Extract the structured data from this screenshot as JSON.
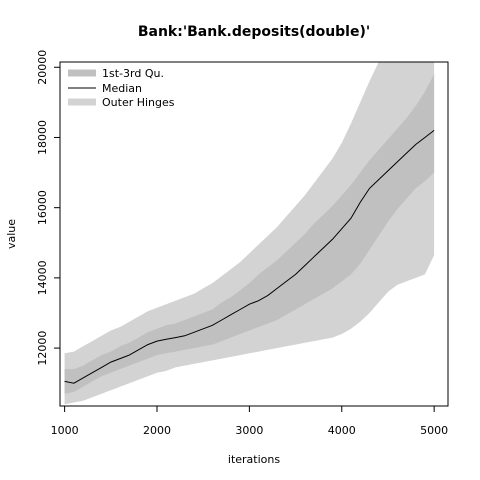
{
  "chart_data": {
    "type": "area",
    "title": "Bank:'Bank.deposits(double)'",
    "xlabel": "iterations",
    "ylabel": "value",
    "xlim": [
      950,
      5150
    ],
    "ylim": [
      10350,
      20150
    ],
    "x_ticks": [
      1000,
      2000,
      3000,
      4000,
      5000
    ],
    "y_ticks": [
      12000,
      14000,
      16000,
      18000,
      20000
    ],
    "legend_position": "top-left",
    "legend": [
      {
        "label": "1st-3rd Qu.",
        "kind": "band",
        "color": "#c0c0c0"
      },
      {
        "label": "Median",
        "kind": "line",
        "color": "#000000"
      },
      {
        "label": "Outer Hinges",
        "kind": "band",
        "color": "#d3d3d3"
      }
    ],
    "colors": {
      "outer_band": "#d3d3d3",
      "iqr_band": "#c0c0c0",
      "median_line": "#000000"
    },
    "x": [
      1000,
      1100,
      1200,
      1300,
      1400,
      1500,
      1600,
      1700,
      1800,
      1900,
      2000,
      2100,
      2200,
      2300,
      2400,
      2500,
      2600,
      2700,
      2800,
      2900,
      3000,
      3100,
      3200,
      3300,
      3400,
      3500,
      3600,
      3700,
      3800,
      3900,
      4000,
      4100,
      4200,
      4300,
      4400,
      4500,
      4600,
      4700,
      4800,
      4900,
      5000
    ],
    "series": [
      {
        "name": "Outer Hinges lower",
        "values": [
          10400,
          10450,
          10500,
          10600,
          10700,
          10800,
          10900,
          11000,
          11100,
          11200,
          11300,
          11350,
          11450,
          11500,
          11550,
          11600,
          11650,
          11700,
          11750,
          11800,
          11850,
          11900,
          11950,
          12000,
          12050,
          12100,
          12150,
          12200,
          12250,
          12300,
          12400,
          12550,
          12750,
          13000,
          13300,
          13600,
          13800,
          13900,
          14000,
          14100,
          14650
        ]
      },
      {
        "name": "1st-3rd Qu. lower",
        "values": [
          10700,
          10750,
          10900,
          11050,
          11200,
          11300,
          11400,
          11500,
          11600,
          11700,
          11800,
          11850,
          11900,
          11950,
          12000,
          12050,
          12100,
          12200,
          12300,
          12400,
          12500,
          12600,
          12700,
          12800,
          12950,
          13100,
          13250,
          13400,
          13550,
          13700,
          13900,
          14100,
          14400,
          14800,
          15200,
          15600,
          15950,
          16250,
          16550,
          16750,
          17000
        ]
      },
      {
        "name": "Median",
        "values": [
          11050,
          11000,
          11150,
          11300,
          11450,
          11600,
          11700,
          11800,
          11950,
          12100,
          12200,
          12250,
          12300,
          12350,
          12450,
          12550,
          12650,
          12800,
          12950,
          13100,
          13250,
          13350,
          13500,
          13700,
          13900,
          14100,
          14350,
          14600,
          14850,
          15100,
          15400,
          15700,
          16150,
          16550,
          16800,
          17050,
          17300,
          17550,
          17800,
          18000,
          18200
        ]
      },
      {
        "name": "1st-3rd Qu. upper",
        "values": [
          11400,
          11400,
          11500,
          11650,
          11800,
          11900,
          12050,
          12150,
          12300,
          12450,
          12550,
          12650,
          12700,
          12800,
          12900,
          13000,
          13100,
          13300,
          13450,
          13650,
          13850,
          14100,
          14300,
          14500,
          14750,
          15000,
          15250,
          15550,
          15800,
          16050,
          16350,
          16650,
          17000,
          17350,
          17650,
          17950,
          18250,
          18550,
          18900,
          19300,
          19800
        ]
      },
      {
        "name": "Outer Hinges upper",
        "values": [
          11850,
          11900,
          12050,
          12200,
          12350,
          12500,
          12600,
          12750,
          12900,
          13050,
          13150,
          13250,
          13350,
          13450,
          13550,
          13700,
          13850,
          14050,
          14250,
          14450,
          14700,
          14950,
          15200,
          15450,
          15750,
          16050,
          16350,
          16700,
          17050,
          17400,
          17850,
          18400,
          19000,
          19600,
          20150,
          20150,
          20150,
          20150,
          20150,
          20150,
          20150
        ]
      }
    ]
  }
}
